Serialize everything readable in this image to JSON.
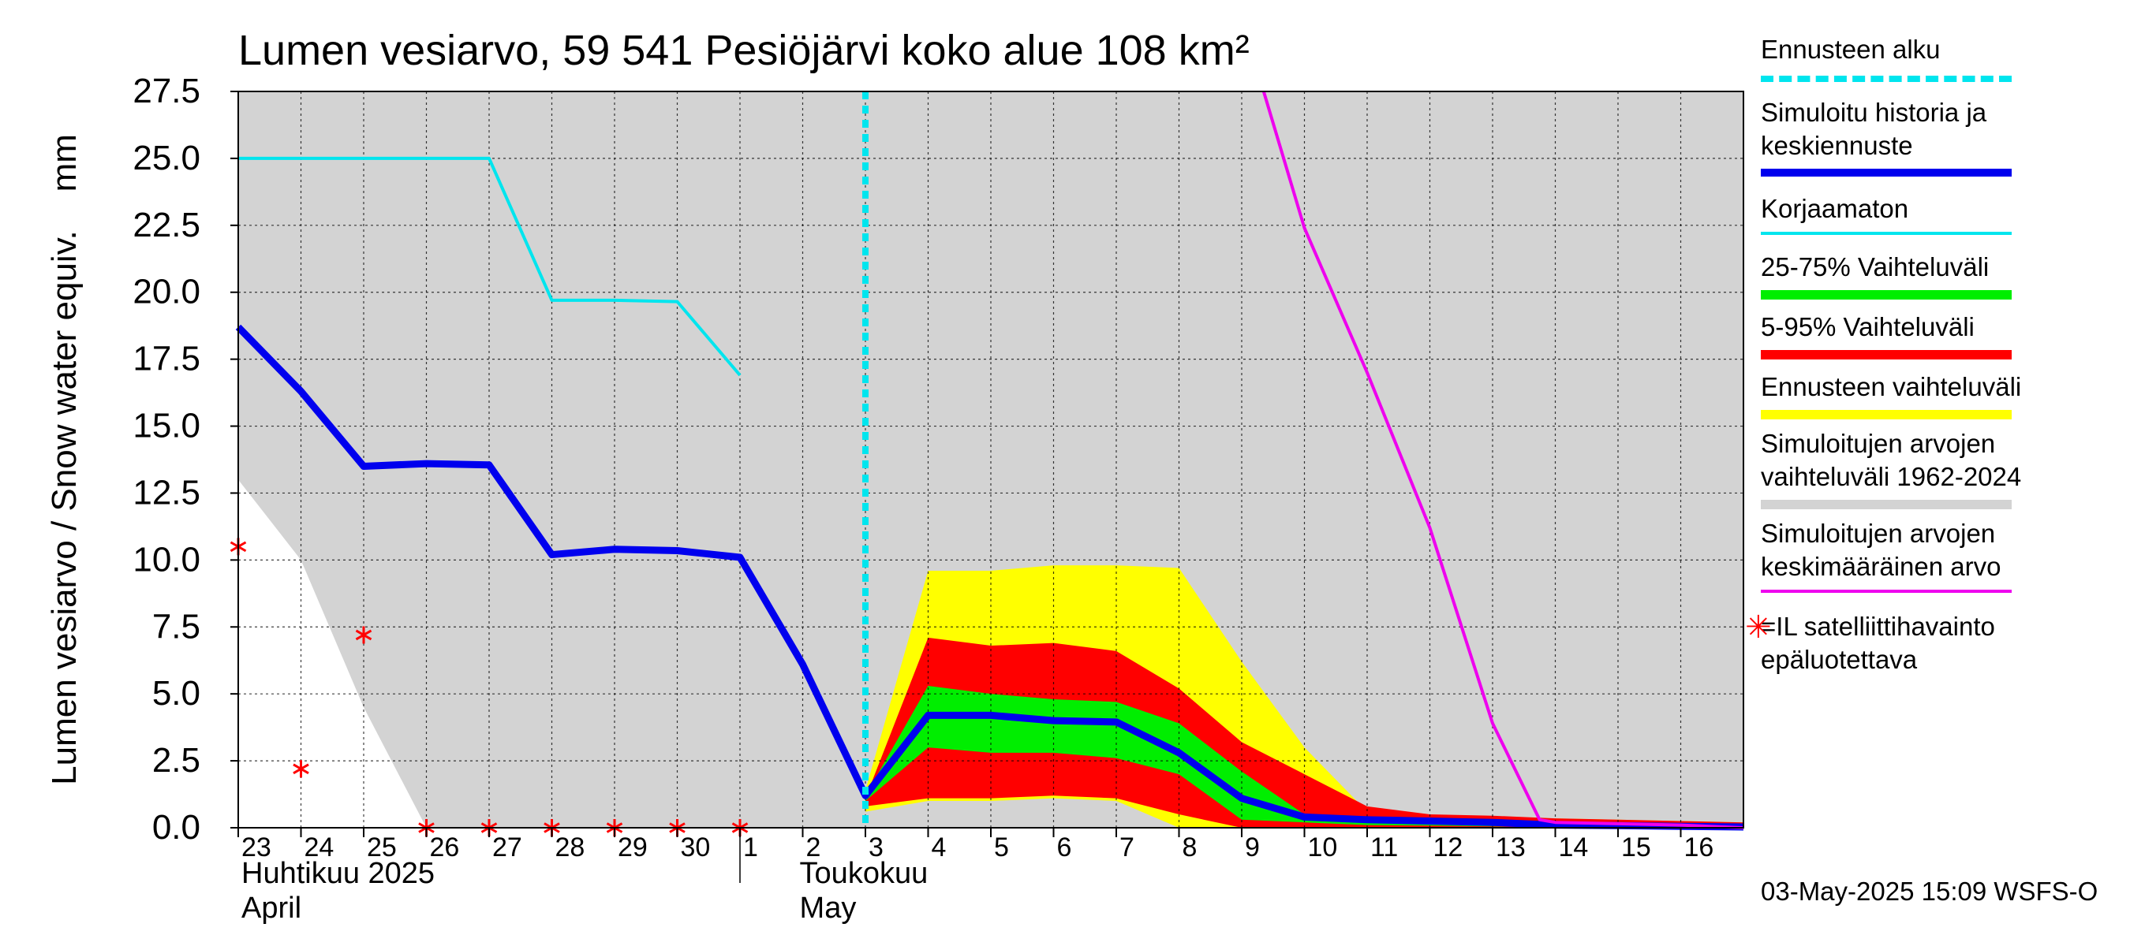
{
  "chart_data": {
    "type": "line",
    "title": "Lumen vesiarvo, 59 541 Pesiöjärvi koko alue 108 km²",
    "ylabel": "Lumen vesiarvo / Snow water equiv.    mm",
    "ylim": [
      0,
      27.5
    ],
    "y_ticks": [
      "0.0",
      "2.5",
      "5.0",
      "7.5",
      "10.0",
      "12.5",
      "15.0",
      "17.5",
      "20.0",
      "22.5",
      "25.0",
      "27.5"
    ],
    "y_tick_values": [
      0,
      2.5,
      5,
      7.5,
      10,
      12.5,
      15,
      17.5,
      20,
      22.5,
      25,
      27.5
    ],
    "xlim": [
      23,
      47
    ],
    "x_ticks": [
      {
        "x": 23,
        "label": "23"
      },
      {
        "x": 24,
        "label": "24"
      },
      {
        "x": 25,
        "label": "25"
      },
      {
        "x": 26,
        "label": "26"
      },
      {
        "x": 27,
        "label": "27"
      },
      {
        "x": 28,
        "label": "28"
      },
      {
        "x": 29,
        "label": "29"
      },
      {
        "x": 30,
        "label": "30"
      },
      {
        "x": 31,
        "label": "1"
      },
      {
        "x": 32,
        "label": "2"
      },
      {
        "x": 33,
        "label": "3"
      },
      {
        "x": 34,
        "label": "4"
      },
      {
        "x": 35,
        "label": "5"
      },
      {
        "x": 36,
        "label": "6"
      },
      {
        "x": 37,
        "label": "7"
      },
      {
        "x": 38,
        "label": "8"
      },
      {
        "x": 39,
        "label": "9"
      },
      {
        "x": 40,
        "label": "10"
      },
      {
        "x": 41,
        "label": "11"
      },
      {
        "x": 42,
        "label": "12"
      },
      {
        "x": 43,
        "label": "13"
      },
      {
        "x": 44,
        "label": "14"
      },
      {
        "x": 45,
        "label": "15"
      },
      {
        "x": 46,
        "label": "16"
      }
    ],
    "x_unit_note": "x = day index; 23–30 = April (Huhtikuu) 2025, 31 = 1 May, 46 = 16 May",
    "month_labels": [
      {
        "x": 23,
        "line1": "Huhtikuu  2025",
        "line2": "April"
      },
      {
        "x": 31.9,
        "line1": "Toukokuu",
        "line2": "May"
      }
    ],
    "forecast_start_x": 33,
    "series": [
      {
        "name": "Simuloitujen arvojen vaihteluväli 1962-2024",
        "color": "#d3d3d3",
        "kind": "band",
        "upper": [
          [
            23,
            27.5
          ],
          [
            47,
            27.5
          ]
        ],
        "lower": [
          [
            23,
            13
          ],
          [
            24,
            10
          ],
          [
            25,
            4.5
          ],
          [
            26,
            0
          ],
          [
            47,
            0
          ]
        ]
      },
      {
        "name": "Ennusteen vaihteluväli",
        "color": "#ffff00",
        "kind": "band",
        "upper": [
          [
            33,
            1.4
          ],
          [
            34,
            9.6
          ],
          [
            35,
            9.6
          ],
          [
            36,
            9.8
          ],
          [
            37,
            9.8
          ],
          [
            38,
            9.7
          ],
          [
            39,
            6.2
          ],
          [
            40,
            3.0
          ],
          [
            41,
            0.6
          ],
          [
            42,
            0.45
          ],
          [
            43,
            0.4
          ],
          [
            44,
            0.35
          ],
          [
            45,
            0.3
          ],
          [
            46,
            0.25
          ],
          [
            47,
            0.2
          ]
        ],
        "lower": [
          [
            33,
            0.6
          ],
          [
            34,
            1.0
          ],
          [
            35,
            1.0
          ],
          [
            36,
            1.1
          ],
          [
            37,
            1.0
          ],
          [
            38,
            0.0
          ],
          [
            39,
            0.0
          ],
          [
            40,
            0.0
          ],
          [
            41,
            0.0
          ],
          [
            42,
            0.0
          ],
          [
            43,
            0.0
          ],
          [
            44,
            0.0
          ],
          [
            45,
            0.0
          ],
          [
            46,
            0.0
          ],
          [
            47,
            0.0
          ]
        ]
      },
      {
        "name": "5-95% Vaihteluväli",
        "color": "#ff0000",
        "kind": "band",
        "upper": [
          [
            33,
            1.1
          ],
          [
            34,
            7.1
          ],
          [
            35,
            6.8
          ],
          [
            36,
            6.9
          ],
          [
            37,
            6.6
          ],
          [
            38,
            5.2
          ],
          [
            39,
            3.2
          ],
          [
            40,
            2.0
          ],
          [
            41,
            0.8
          ],
          [
            42,
            0.5
          ],
          [
            43,
            0.45
          ],
          [
            44,
            0.35
          ],
          [
            45,
            0.3
          ],
          [
            46,
            0.25
          ],
          [
            47,
            0.2
          ]
        ],
        "lower": [
          [
            33,
            0.8
          ],
          [
            34,
            1.1
          ],
          [
            35,
            1.1
          ],
          [
            36,
            1.2
          ],
          [
            37,
            1.1
          ],
          [
            38,
            0.5
          ],
          [
            39,
            0.0
          ],
          [
            40,
            0.0
          ],
          [
            41,
            0.0
          ],
          [
            42,
            0.0
          ],
          [
            43,
            0.0
          ],
          [
            44,
            0.0
          ],
          [
            45,
            0.0
          ],
          [
            46,
            0.0
          ],
          [
            47,
            0.0
          ]
        ]
      },
      {
        "name": "25-75% Vaihteluväli",
        "color": "#00ee00",
        "kind": "band",
        "upper": [
          [
            33,
            1.2
          ],
          [
            34,
            5.3
          ],
          [
            35,
            5.0
          ],
          [
            36,
            4.8
          ],
          [
            37,
            4.7
          ],
          [
            38,
            3.9
          ],
          [
            39,
            2.1
          ],
          [
            40,
            0.5
          ],
          [
            41,
            0.3
          ],
          [
            42,
            0.25
          ],
          [
            43,
            0.2
          ],
          [
            44,
            0.15
          ],
          [
            45,
            0.1
          ],
          [
            46,
            0.08
          ],
          [
            47,
            0.05
          ]
        ],
        "lower": [
          [
            33,
            1.0
          ],
          [
            34,
            3.0
          ],
          [
            35,
            2.8
          ],
          [
            36,
            2.8
          ],
          [
            37,
            2.6
          ],
          [
            38,
            2.0
          ],
          [
            39,
            0.3
          ],
          [
            40,
            0.2
          ],
          [
            41,
            0.1
          ],
          [
            42,
            0.08
          ],
          [
            43,
            0.05
          ],
          [
            44,
            0.03
          ],
          [
            45,
            0.02
          ],
          [
            46,
            0.01
          ],
          [
            47,
            0.0
          ]
        ]
      },
      {
        "name": "Simuloitu historia ja keskiennuste",
        "color": "#0000ee",
        "kind": "line",
        "width": 9,
        "points": [
          [
            23,
            18.7
          ],
          [
            24,
            16.3
          ],
          [
            25,
            13.5
          ],
          [
            26,
            13.6
          ],
          [
            27,
            13.55
          ],
          [
            28,
            10.2
          ],
          [
            29,
            10.4
          ],
          [
            30,
            10.35
          ],
          [
            31,
            10.1
          ],
          [
            32,
            6.1
          ],
          [
            33,
            1.2
          ],
          [
            34,
            4.2
          ],
          [
            35,
            4.2
          ],
          [
            36,
            4.0
          ],
          [
            37,
            3.95
          ],
          [
            38,
            2.8
          ],
          [
            39,
            1.1
          ],
          [
            40,
            0.4
          ],
          [
            41,
            0.3
          ],
          [
            42,
            0.25
          ],
          [
            43,
            0.2
          ],
          [
            44,
            0.1
          ],
          [
            45,
            0.08
          ],
          [
            46,
            0.05
          ],
          [
            47,
            0.03
          ]
        ]
      },
      {
        "name": "Korjaamaton",
        "color": "#00e5ee",
        "kind": "line",
        "width": 4,
        "points": [
          [
            23,
            25.0
          ],
          [
            24,
            25.0
          ],
          [
            25,
            25.0
          ],
          [
            26,
            25.0
          ],
          [
            27,
            25.0
          ],
          [
            28,
            19.7
          ],
          [
            29,
            19.7
          ],
          [
            30,
            19.65
          ],
          [
            31,
            16.9
          ]
        ]
      },
      {
        "name": "Simuloitujen arvojen keskimääräinen arvo",
        "color": "#ee00ee",
        "kind": "line",
        "width": 4,
        "points": [
          [
            39.35,
            27.5
          ],
          [
            40,
            22.4
          ],
          [
            41,
            17.0
          ],
          [
            42,
            11.2
          ],
          [
            43,
            3.9
          ],
          [
            43.75,
            0.3
          ],
          [
            44,
            0.2
          ],
          [
            45,
            0.15
          ],
          [
            46,
            0.1
          ],
          [
            47,
            0.0
          ]
        ]
      }
    ],
    "observations": {
      "name": "=IL satelliittihavainto epäluotettava",
      "color": "#ff0000",
      "points": [
        [
          23,
          10.5
        ],
        [
          24,
          2.2
        ],
        [
          25,
          7.2
        ],
        [
          26,
          0.0
        ],
        [
          27,
          0.0
        ],
        [
          28,
          0.0
        ],
        [
          29,
          0.0
        ],
        [
          30,
          0.0
        ],
        [
          31,
          0.0
        ]
      ]
    },
    "grid": true
  },
  "legend": {
    "items": [
      {
        "label": "Ennusteen alku",
        "color": "#00e5ee",
        "style": "dashed"
      },
      {
        "label": "Simuloitu historia ja\nkeskiennuste",
        "color": "#0000ee",
        "style": "thick"
      },
      {
        "label": "Korjaamaton",
        "color": "#00e5ee",
        "style": "thin"
      },
      {
        "label": "25-75% Vaihteluväli",
        "color": "#00ee00",
        "style": "thick"
      },
      {
        "label": "5-95% Vaihteluväli",
        "color": "#ff0000",
        "style": "thick"
      },
      {
        "label": "Ennusteen vaihteluväli",
        "color": "#ffff00",
        "style": "thick"
      },
      {
        "label": "Simuloitujen arvojen\nvaihteluväli 1962-2024",
        "color": "#d3d3d3",
        "style": "thick"
      },
      {
        "label": "Simuloitujen arvojen\nkeskimääräinen arvo",
        "color": "#ee00ee",
        "style": "thin"
      }
    ],
    "observation_label": "=IL satelliittihavainto\nepäluotettava",
    "observation_symbol": "✳"
  },
  "footer": "03-May-2025 15:09 WSFS-O"
}
